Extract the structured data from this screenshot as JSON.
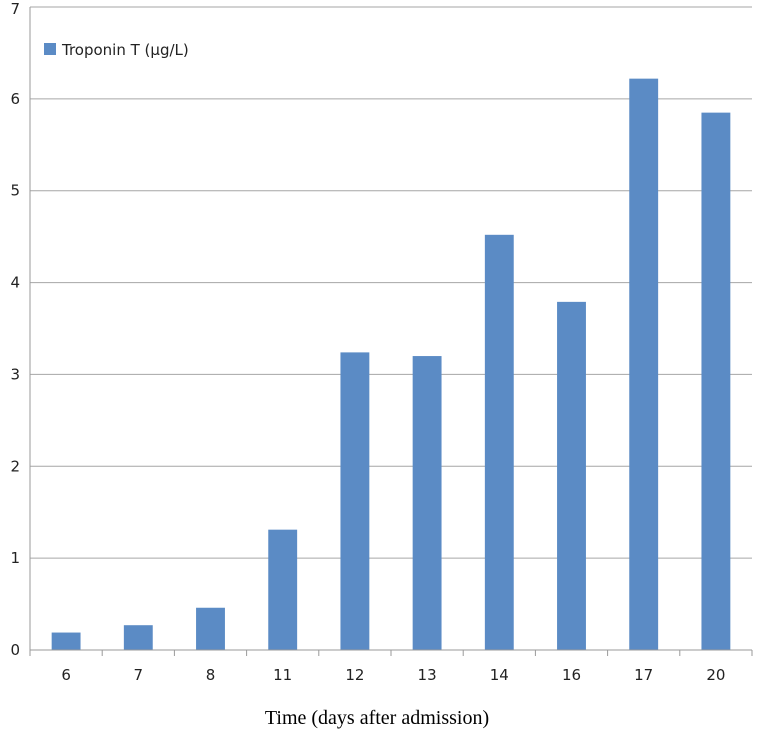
{
  "chart_data": {
    "type": "bar",
    "categories": [
      "6",
      "7",
      "8",
      "11",
      "12",
      "13",
      "14",
      "16",
      "17",
      "20"
    ],
    "series": [
      {
        "name": "Troponin T (µg/L)",
        "values": [
          0.19,
          0.27,
          0.46,
          1.31,
          3.24,
          3.2,
          4.52,
          3.79,
          6.22,
          5.85
        ],
        "color": "#5b8bc5"
      }
    ],
    "xlabel": "Time (days after admission)",
    "ylabel": "",
    "ylim": [
      0,
      7
    ],
    "yticks": [
      "0",
      "1",
      "2",
      "3",
      "4",
      "5",
      "6",
      "7"
    ],
    "grid": true,
    "legend": "top-left"
  }
}
